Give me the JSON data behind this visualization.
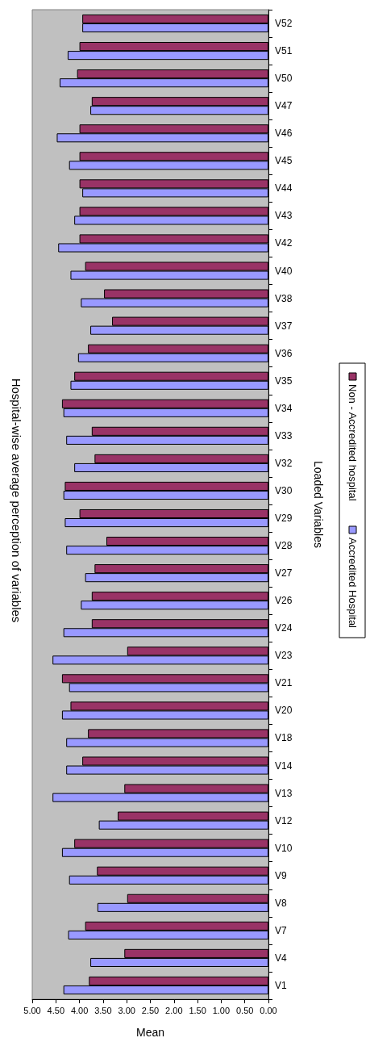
{
  "chart_data": {
    "type": "bar",
    "orientation": "horizontal",
    "title": "Hospital-wise average perception of variables",
    "xlabel": "Mean",
    "ylabel": "Loaded Variables",
    "categories": [
      "V52",
      "V51",
      "V50",
      "V47",
      "V46",
      "V45",
      "V44",
      "V43",
      "V42",
      "V40",
      "V38",
      "V37",
      "V36",
      "V35",
      "V34",
      "V33",
      "V32",
      "V30",
      "V29",
      "V28",
      "V27",
      "V26",
      "V24",
      "V23",
      "V21",
      "V20",
      "V18",
      "V14",
      "V13",
      "V12",
      "V10",
      "V9",
      "V8",
      "V7",
      "V4",
      "V1"
    ],
    "series": [
      {
        "name": "Accredited Hospital",
        "color": "#9999ff",
        "values": [
          3.94,
          4.25,
          4.42,
          3.77,
          4.48,
          4.22,
          3.94,
          4.11,
          4.45,
          4.19,
          3.97,
          3.77,
          4.03,
          4.19,
          4.34,
          4.28,
          4.11,
          4.34,
          4.31,
          4.28,
          3.88,
          3.97,
          4.34,
          4.57,
          4.22,
          4.37,
          4.28,
          4.28,
          4.57,
          3.59,
          4.37,
          4.22,
          3.62,
          4.24,
          3.77,
          4.34
        ]
      },
      {
        "name": "Non - Accredited hospital",
        "color": "#993366",
        "values": [
          3.94,
          4.0,
          4.05,
          3.74,
          4.0,
          4.0,
          4.0,
          4.0,
          4.0,
          3.88,
          3.48,
          3.31,
          3.82,
          4.11,
          4.37,
          3.74,
          3.68,
          4.31,
          4.0,
          3.43,
          3.68,
          3.74,
          3.74,
          2.99,
          4.37,
          4.19,
          3.82,
          3.94,
          3.05,
          3.19,
          4.11,
          3.63,
          2.99,
          3.88,
          3.05,
          3.8
        ]
      }
    ],
    "xlim": [
      5,
      0
    ],
    "xticks": [
      {
        "value": 5,
        "label": "5.00"
      },
      {
        "value": 4.5,
        "label": "4.50"
      },
      {
        "value": 4,
        "label": "4.00"
      },
      {
        "value": 3.5,
        "label": "3.50"
      },
      {
        "value": 3,
        "label": "3.00"
      },
      {
        "value": 2.5,
        "label": "2.50"
      },
      {
        "value": 2,
        "label": "2.00"
      },
      {
        "value": 1.5,
        "label": "1.50"
      },
      {
        "value": 1,
        "label": "1.00"
      },
      {
        "value": 0.5,
        "label": "0.50"
      },
      {
        "value": 0,
        "label": "0.00"
      }
    ],
    "grid": false,
    "legend": "right"
  }
}
